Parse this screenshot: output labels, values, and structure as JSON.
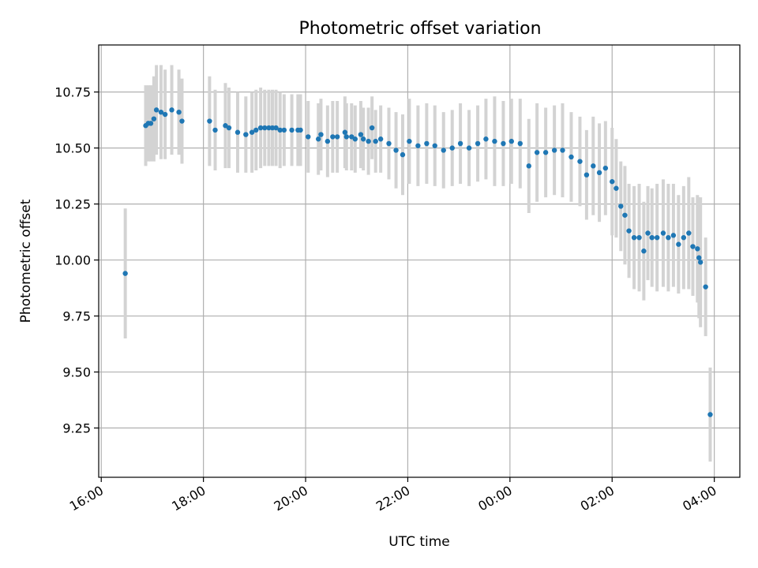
{
  "chart_data": {
    "type": "scatter",
    "title": "Photometric offset variation",
    "xlabel": "UTC time",
    "ylabel": "Photometric offset",
    "x_ticks": [
      "16:00",
      "18:00",
      "20:00",
      "22:00",
      "00:00",
      "02:00",
      "04:00"
    ],
    "x_tick_hours": [
      16,
      18,
      20,
      22,
      24,
      26,
      28
    ],
    "xlim_hours": [
      15.95,
      28.5
    ],
    "ylim": [
      9.03,
      10.96
    ],
    "y_ticks": [
      9.25,
      9.5,
      9.75,
      10.0,
      10.25,
      10.5,
      10.75
    ],
    "y_tick_labels": [
      "9.25",
      "9.50",
      "9.75",
      "10.00",
      "10.25",
      "10.50",
      "10.75"
    ],
    "grid": true,
    "colors": {
      "point": "#1f77b4",
      "errorbar": "#d3d3d3",
      "grid": "#b0b0b0",
      "axis": "#000000"
    },
    "series": [
      {
        "x_time": [
          "16:28",
          "16:52",
          "16:55",
          "16:58",
          "17:02",
          "17:05",
          "17:10",
          "17:15",
          "17:23",
          "17:31",
          "17:35",
          "18:07",
          "18:14",
          "18:26",
          "18:30",
          "18:40",
          "18:50",
          "18:57",
          "19:02",
          "19:07",
          "19:12",
          "19:17",
          "19:21",
          "19:25",
          "19:30",
          "19:35",
          "19:44",
          "19:51",
          "19:54",
          "20:03",
          "20:15",
          "20:18",
          "20:26",
          "20:32",
          "20:37",
          "20:46",
          "20:48",
          "20:54",
          "20:58",
          "21:05",
          "21:08",
          "21:14",
          "21:18",
          "21:22",
          "21:28",
          "21:38",
          "21:46",
          "21:54",
          "22:02",
          "22:12",
          "22:22",
          "22:32",
          "22:42",
          "22:52",
          "23:02",
          "23:12",
          "23:22",
          "23:32",
          "23:42",
          "23:52",
          "00:02",
          "00:12",
          "00:22",
          "00:32",
          "00:42",
          "00:52",
          "01:02",
          "01:12",
          "01:22",
          "01:30",
          "01:38",
          "01:45",
          "01:52",
          "02:00",
          "02:05",
          "02:10",
          "02:15",
          "02:20",
          "02:26",
          "02:32",
          "02:37",
          "02:42",
          "02:47",
          "02:53",
          "03:00",
          "03:06",
          "03:12",
          "03:18",
          "03:24",
          "03:30",
          "03:35",
          "03:40",
          "03:42",
          "03:44",
          "03:50",
          "03:55"
        ],
        "x": [
          16.47,
          16.87,
          16.92,
          16.97,
          17.03,
          17.08,
          17.17,
          17.25,
          17.38,
          17.52,
          17.58,
          18.12,
          18.23,
          18.43,
          18.5,
          18.67,
          18.83,
          18.95,
          19.03,
          19.12,
          19.2,
          19.28,
          19.35,
          19.42,
          19.5,
          19.58,
          19.73,
          19.85,
          19.9,
          20.05,
          20.25,
          20.3,
          20.43,
          20.53,
          20.62,
          20.77,
          20.8,
          20.9,
          20.97,
          21.08,
          21.13,
          21.23,
          21.3,
          21.37,
          21.47,
          21.63,
          21.77,
          21.9,
          22.03,
          22.2,
          22.37,
          22.53,
          22.7,
          22.87,
          23.03,
          23.2,
          23.37,
          23.53,
          23.7,
          23.87,
          24.03,
          24.2,
          24.37,
          24.53,
          24.7,
          24.87,
          25.03,
          25.2,
          25.37,
          25.5,
          25.63,
          25.75,
          25.87,
          26.0,
          26.08,
          26.17,
          26.25,
          26.33,
          26.43,
          26.53,
          26.62,
          26.7,
          26.78,
          26.88,
          27.0,
          27.1,
          27.2,
          27.3,
          27.4,
          27.5,
          27.58,
          27.67,
          27.7,
          27.73,
          27.83,
          27.92
        ],
        "y": [
          9.94,
          10.6,
          10.61,
          10.61,
          10.63,
          10.67,
          10.66,
          10.65,
          10.67,
          10.66,
          10.62,
          10.62,
          10.58,
          10.6,
          10.59,
          10.57,
          10.56,
          10.57,
          10.58,
          10.59,
          10.59,
          10.59,
          10.59,
          10.59,
          10.58,
          10.58,
          10.58,
          10.58,
          10.58,
          10.55,
          10.54,
          10.56,
          10.53,
          10.55,
          10.55,
          10.57,
          10.55,
          10.55,
          10.54,
          10.56,
          10.54,
          10.53,
          10.59,
          10.53,
          10.54,
          10.52,
          10.49,
          10.47,
          10.53,
          10.51,
          10.52,
          10.51,
          10.49,
          10.5,
          10.52,
          10.5,
          10.52,
          10.54,
          10.53,
          10.52,
          10.53,
          10.52,
          10.42,
          10.48,
          10.48,
          10.49,
          10.49,
          10.46,
          10.44,
          10.38,
          10.42,
          10.39,
          10.41,
          10.35,
          10.32,
          10.24,
          10.2,
          10.13,
          10.1,
          10.1,
          10.04,
          10.12,
          10.1,
          10.1,
          10.12,
          10.1,
          10.11,
          10.07,
          10.1,
          10.12,
          10.06,
          10.05,
          10.01,
          9.99,
          9.88,
          9.31
        ],
        "err": [
          0.29,
          0.18,
          0.17,
          0.17,
          0.19,
          0.2,
          0.21,
          0.2,
          0.2,
          0.19,
          0.19,
          0.2,
          0.18,
          0.19,
          0.18,
          0.18,
          0.17,
          0.18,
          0.18,
          0.18,
          0.17,
          0.17,
          0.17,
          0.17,
          0.17,
          0.16,
          0.16,
          0.16,
          0.16,
          0.16,
          0.16,
          0.16,
          0.16,
          0.16,
          0.16,
          0.16,
          0.15,
          0.15,
          0.15,
          0.15,
          0.14,
          0.15,
          0.14,
          0.14,
          0.15,
          0.16,
          0.17,
          0.18,
          0.19,
          0.18,
          0.18,
          0.18,
          0.17,
          0.17,
          0.18,
          0.17,
          0.17,
          0.18,
          0.2,
          0.19,
          0.19,
          0.2,
          0.21,
          0.22,
          0.2,
          0.2,
          0.21,
          0.2,
          0.2,
          0.2,
          0.22,
          0.22,
          0.21,
          0.24,
          0.22,
          0.2,
          0.22,
          0.21,
          0.23,
          0.24,
          0.22,
          0.21,
          0.22,
          0.24,
          0.24,
          0.24,
          0.23,
          0.22,
          0.23,
          0.25,
          0.22,
          0.24,
          0.27,
          0.29,
          0.22,
          0.21
        ]
      }
    ]
  }
}
